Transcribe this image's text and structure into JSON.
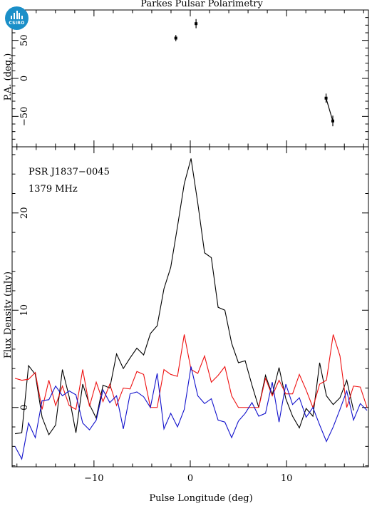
{
  "logo": {
    "text": "CSIRO",
    "color": "#1a8fc8"
  },
  "chart_data": [
    {
      "type": "scatter",
      "title": "Parkes Pulsar Polarimetry",
      "xlabel": "",
      "ylabel": "P.A. (deg.)",
      "xlim": [
        -18.5,
        18.5
      ],
      "ylim": [
        -90,
        90
      ],
      "yticks": [
        -50,
        0,
        50
      ],
      "segments": [
        {
          "points": [
            {
              "x": -1.5,
              "y": 53,
              "err": 4
            }
          ]
        },
        {
          "points": [
            {
              "x": 0.6,
              "y": 72,
              "err": 6
            }
          ]
        },
        {
          "points": [
            {
              "x": 14.1,
              "y": -26,
              "err": 6
            },
            {
              "x": 14.8,
              "y": -56,
              "err": 7
            }
          ]
        }
      ],
      "color": "#000000"
    },
    {
      "type": "line",
      "title": "",
      "annotations": [
        "PSR J1837−0045",
        "1379 MHz"
      ],
      "xlabel": "Pulse Longitude (deg)",
      "ylabel": "Flux Density (mJy)",
      "xlim": [
        -18.5,
        18.5
      ],
      "ylim": [
        -6.1,
        26.8
      ],
      "xticks": [
        -10,
        0,
        10
      ],
      "yticks": [
        0,
        10,
        20
      ],
      "x_start": -18.2,
      "x_step": 0.703,
      "series": [
        {
          "color": "#000000",
          "values": [
            -2.7,
            -2.6,
            4.3,
            3.4,
            -1.0,
            -2.8,
            -1.8,
            3.9,
            1.1,
            -2.6,
            2.4,
            0.3,
            -1.1,
            2.3,
            2.0,
            5.5,
            4.0,
            5.1,
            6.1,
            5.4,
            7.6,
            8.4,
            12.2,
            14.4,
            18.6,
            23.0,
            25.6,
            21.0,
            15.9,
            15.4,
            10.3,
            10.0,
            6.6,
            4.6,
            4.8,
            2.3,
            0.0,
            3.3,
            1.3,
            4.1,
            0.9,
            -0.9,
            -2.1,
            -0.1,
            -0.9,
            4.6,
            1.2,
            0.3,
            1.0,
            2.8,
            -0.3
          ]
        },
        {
          "color": "#ee1111",
          "values": [
            3.0,
            2.8,
            2.9,
            3.6,
            -0.2,
            2.8,
            0.2,
            2.2,
            0.2,
            -0.2,
            3.9,
            0.1,
            2.6,
            0.6,
            2.4,
            0.2,
            2.0,
            1.9,
            3.7,
            3.4,
            0.0,
            0.0,
            3.9,
            3.4,
            3.2,
            7.5,
            3.9,
            3.5,
            5.3,
            2.6,
            3.3,
            4.2,
            1.2,
            0.0,
            0.0,
            0.0,
            0.0,
            3.0,
            1.2,
            2.8,
            1.4,
            1.4,
            3.4,
            1.8,
            0.0,
            2.4,
            2.8,
            7.5,
            5.3,
            0.0,
            2.2,
            2.1,
            0.0
          ]
        },
        {
          "color": "#1111cc",
          "values": [
            -4.0,
            -5.3,
            -1.6,
            -3.1,
            0.7,
            0.8,
            2.2,
            1.2,
            1.7,
            1.3,
            -1.6,
            -2.3,
            -1.3,
            1.8,
            0.5,
            1.2,
            -2.2,
            1.4,
            1.6,
            1.1,
            0.0,
            3.5,
            -2.2,
            -0.6,
            -2.0,
            -0.2,
            4.2,
            1.2,
            0.4,
            0.9,
            -1.3,
            -1.5,
            -3.1,
            -1.4,
            -0.6,
            0.5,
            -0.9,
            -0.6,
            2.6,
            -1.5,
            2.4,
            0.3,
            1.0,
            -1.0,
            0.0,
            -1.8,
            -3.5,
            -2.0,
            -0.2,
            1.7,
            -1.3,
            0.4,
            -0.3
          ]
        }
      ]
    }
  ]
}
